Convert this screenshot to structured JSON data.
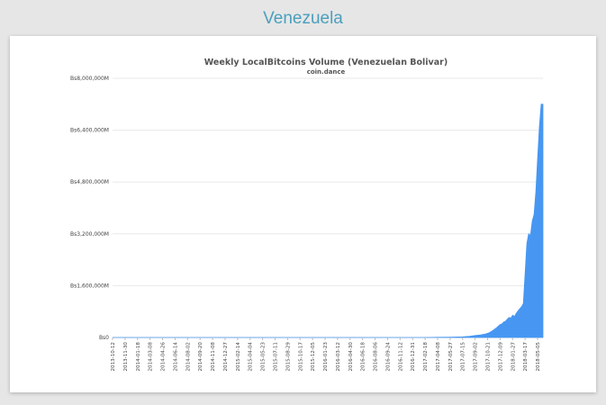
{
  "page": {
    "heading": "Venezuela"
  },
  "colors": {
    "heading": "#4a9fbd",
    "area": "#4797f2",
    "grid": "#e8e8e8"
  },
  "chart_data": {
    "type": "area",
    "title": "Weekly LocalBitcoins Volume (Venezuelan Bolivar)",
    "subtitle": "coin.dance",
    "xlabel": "",
    "ylabel": "",
    "ylim": [
      0,
      8000000
    ],
    "y_ticks": [
      0,
      1600000,
      3200000,
      4800000,
      6400000,
      8000000
    ],
    "y_tick_labels": [
      "Bs0",
      "Bs1,600,000M",
      "Bs3,200,000M",
      "Bs4,800,000M",
      "Bs6,400,000M",
      "Bs8,000,000M"
    ],
    "x_tick_labels": [
      "2013-10-12",
      "2013-11-30",
      "2014-01-18",
      "2014-03-08",
      "2014-04-26",
      "2014-06-14",
      "2014-08-02",
      "2014-09-20",
      "2014-11-08",
      "2014-12-27",
      "2015-02-14",
      "2015-04-04",
      "2015-05-23",
      "2015-07-11",
      "2015-08-29",
      "2015-10-17",
      "2015-12-05",
      "2016-01-23",
      "2016-03-12",
      "2016-04-30",
      "2016-06-18",
      "2016-08-06",
      "2016-09-24",
      "2016-11-12",
      "2016-12-31",
      "2017-02-18",
      "2017-04-08",
      "2017-05-27",
      "2017-07-15",
      "2017-09-02",
      "2017-10-21",
      "2017-12-09",
      "2018-01-27",
      "2018-03-17",
      "2018-05-05"
    ],
    "grid": true,
    "legend": "none",
    "series": [
      {
        "x": [
          "2013-10-12",
          "2016-12-31",
          "2017-02-18",
          "2017-04-08",
          "2017-05-27",
          "2017-07-15",
          "2017-08-12",
          "2017-09-02",
          "2017-09-23",
          "2017-10-14",
          "2017-10-28",
          "2017-11-11",
          "2017-11-25",
          "2017-12-09",
          "2017-12-16",
          "2017-12-23",
          "2017-12-30",
          "2018-01-06",
          "2018-01-13",
          "2018-01-20",
          "2018-01-27",
          "2018-02-03",
          "2018-02-10",
          "2018-02-17",
          "2018-02-24",
          "2018-03-03",
          "2018-03-10",
          "2018-03-17",
          "2018-03-24",
          "2018-03-31",
          "2018-04-07",
          "2018-04-14",
          "2018-04-21",
          "2018-04-28",
          "2018-05-05",
          "2018-05-12",
          "2018-05-19",
          "2018-05-26"
        ],
        "values": [
          0,
          0,
          0,
          5000,
          10000,
          20000,
          40000,
          60000,
          80000,
          110000,
          150000,
          220000,
          300000,
          400000,
          420000,
          480000,
          500000,
          560000,
          620000,
          600000,
          690000,
          650000,
          740000,
          820000,
          890000,
          950000,
          1050000,
          2000000,
          2900000,
          3200000,
          3150000,
          3600000,
          3800000,
          4500000,
          5500000,
          6500000,
          7200000,
          7200000
        ]
      }
    ]
  }
}
